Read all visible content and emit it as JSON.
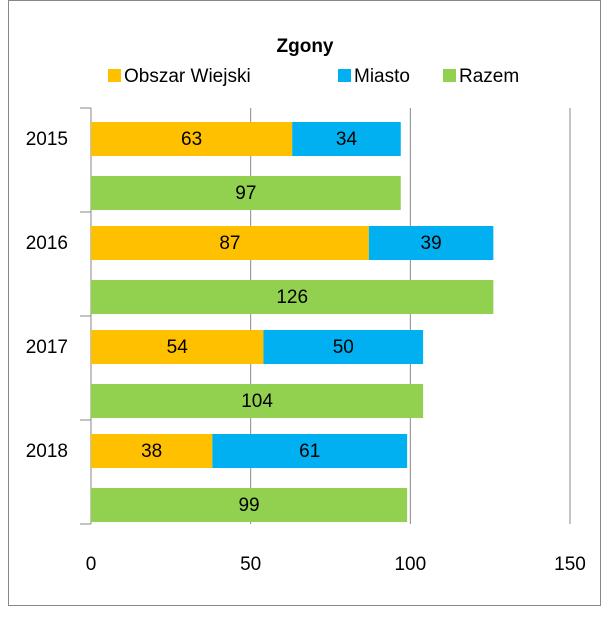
{
  "chart_data": {
    "type": "bar",
    "orientation": "horizontal",
    "title": "Zgony",
    "categories": [
      "2015",
      "2016",
      "2017",
      "2018"
    ],
    "series": [
      {
        "name": "Obszar Wiejski",
        "color": "#ffc000",
        "values": [
          63,
          87,
          54,
          38
        ]
      },
      {
        "name": "Miasto",
        "color": "#00b0f0",
        "values": [
          34,
          39,
          50,
          61
        ]
      },
      {
        "name": "Razem",
        "color": "#92d050",
        "values": [
          97,
          126,
          104,
          99
        ]
      }
    ],
    "xlim": [
      0,
      150
    ],
    "xticks": [
      0,
      50,
      100,
      150
    ],
    "grid": true,
    "legend": "top"
  }
}
